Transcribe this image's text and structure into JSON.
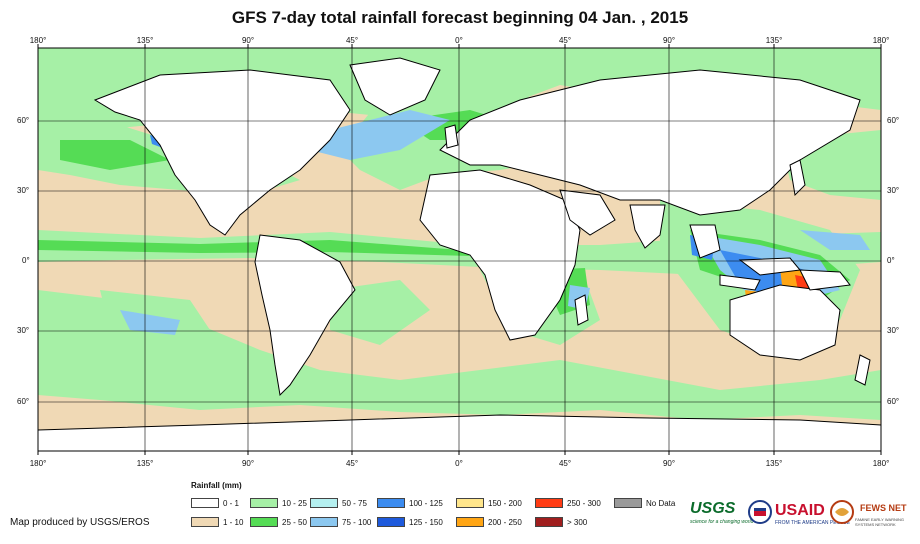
{
  "title": "GFS 7-day total rainfall forecast beginning 04 Jan. , 2015",
  "lon_labels": [
    "180°",
    "135°",
    "90°",
    "45°",
    "0°",
    "45°",
    "90°",
    "135°",
    "180°"
  ],
  "lat_labels_left": [
    "60°",
    "30°",
    "0°",
    "30°",
    "60°"
  ],
  "lat_labels_right": [
    "60°",
    "30°",
    "0°",
    "30°",
    "60°"
  ],
  "legend": {
    "title": "Rainfall (mm)",
    "items": [
      {
        "label": "0 - 1",
        "color": "#ffffff"
      },
      {
        "label": "1 - 10",
        "color": "#f0d9b5"
      },
      {
        "label": "10 - 25",
        "color": "#a6f0a6"
      },
      {
        "label": "25 - 50",
        "color": "#55dc55"
      },
      {
        "label": "50 - 75",
        "color": "#b5f0f0"
      },
      {
        "label": "75 - 100",
        "color": "#8cc8f0"
      },
      {
        "label": "100 - 125",
        "color": "#3c8cf0"
      },
      {
        "label": "125 - 150",
        "color": "#1e5adc"
      },
      {
        "label": "150 - 200",
        "color": "#ffe68c"
      },
      {
        "label": "200 - 250",
        "color": "#ffa514"
      },
      {
        "label": "250 - 300",
        "color": "#ff3c14"
      },
      {
        "label": "> 300",
        "color": "#a01e1e"
      },
      {
        "label": "No Data",
        "color": "#9a9a9a"
      }
    ]
  },
  "credit": "Map produced by USGS/EROS",
  "logos": {
    "usgs": "USGS",
    "usgs_tagline": "science for a changing world",
    "usaid": "USAID",
    "usaid_tagline": "FROM THE AMERICAN PEOPLE",
    "fews": "FEWS NET",
    "fews_tagline": "FAMINE EARLY WARNING SYSTEMS NETWORK"
  },
  "colors": {
    "ocean_dry": "#f0d9b5",
    "land": "#ffffff",
    "frame": "#000000"
  }
}
